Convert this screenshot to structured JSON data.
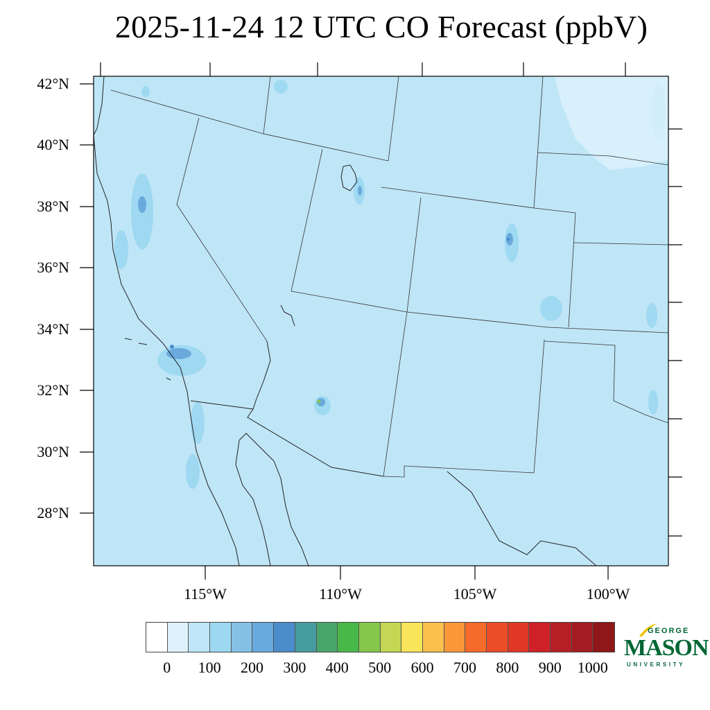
{
  "title": "2025-11-24 12 UTC CO Forecast (ppbV)",
  "map": {
    "lat_ticks": [
      "42°N",
      "40°N",
      "38°N",
      "36°N",
      "34°N",
      "32°N",
      "30°N",
      "28°N"
    ],
    "lon_ticks": [
      "115°W",
      "110°W",
      "105°W",
      "100°W"
    ],
    "background_color": "#bfe6f7",
    "features": [
      "state-borders",
      "coastline",
      "mexico-border",
      "concentration-field"
    ]
  },
  "colorbar": {
    "colors": [
      "#ffffff",
      "#dff2fb",
      "#bfe6f7",
      "#9dd8f1",
      "#84c1e5",
      "#69a9dc",
      "#4a8dcb",
      "#479c9f",
      "#48a66b",
      "#48b848",
      "#86c64a",
      "#c4d755",
      "#f8e559",
      "#fac04c",
      "#f99739",
      "#f56b29",
      "#eb4e27",
      "#e03827",
      "#cd2127",
      "#b81e25",
      "#a41b22",
      "#8e1718"
    ],
    "labels": [
      "0",
      "100",
      "200",
      "300",
      "400",
      "500",
      "600",
      "700",
      "800",
      "900",
      "1000"
    ]
  },
  "logo": {
    "line1": "GEORGE",
    "line2": "MASON",
    "line3": "UNIVERSITY",
    "brand_color": "#006633",
    "accent_color": "#f2c200"
  }
}
